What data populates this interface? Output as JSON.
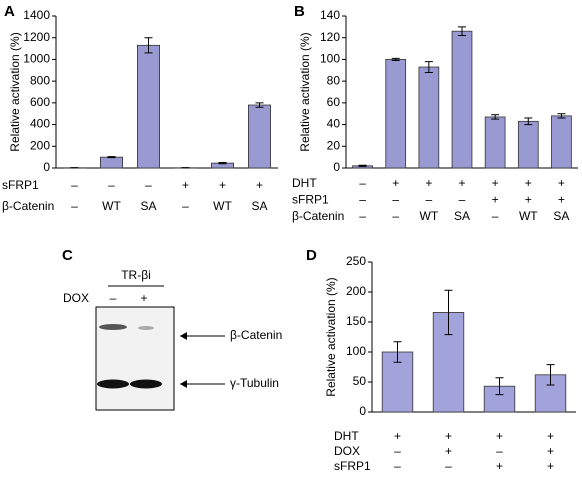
{
  "chart_data": [
    {
      "type": "bar",
      "label": "A",
      "y_label": "Relative activation (%)",
      "color": "#9a9ad2",
      "values": [
        2,
        100,
        1130,
        2,
        45,
        580
      ],
      "errors": [
        1,
        5,
        70,
        1,
        6,
        20
      ],
      "ylim": [
        0,
        1400
      ],
      "yticks": [
        0,
        200,
        400,
        600,
        800,
        1000,
        1200,
        1400
      ],
      "conditions": [
        {
          "name": "sFRP1",
          "values": [
            "–",
            "–",
            "–",
            "+",
            "+",
            "+"
          ]
        },
        {
          "name": "β-Catenin",
          "values": [
            "–",
            "WT",
            "SA",
            "–",
            "WT",
            "SA"
          ]
        }
      ]
    },
    {
      "type": "bar",
      "label": "B",
      "y_label": "Relative activation (%)",
      "color": "#9a9ad2",
      "values": [
        2,
        100,
        93,
        126,
        47,
        43,
        48
      ],
      "errors": [
        0.5,
        1,
        5,
        4,
        2,
        3,
        2
      ],
      "ylim": [
        0,
        140
      ],
      "yticks": [
        0,
        20,
        40,
        60,
        80,
        100,
        120,
        140
      ],
      "conditions": [
        {
          "name": "DHT",
          "values": [
            "–",
            "+",
            "+",
            "+",
            "+",
            "+",
            "+"
          ]
        },
        {
          "name": "sFRP1",
          "values": [
            "–",
            "–",
            "–",
            "–",
            "+",
            "+",
            "+"
          ]
        },
        {
          "name": "β-Catenin",
          "values": [
            "–",
            "–",
            "WT",
            "SA",
            "–",
            "WT",
            "SA"
          ]
        }
      ]
    },
    {
      "type": "bar",
      "label": "D",
      "y_label": "Relative activation (%)",
      "color": "#a3a3dc",
      "values": [
        100,
        166,
        43,
        62
      ],
      "errors": [
        17,
        37,
        14,
        17
      ],
      "ylim": [
        0,
        250
      ],
      "yticks": [
        0,
        50,
        100,
        150,
        200,
        250
      ],
      "conditions": [
        {
          "name": "DHT",
          "values": [
            "+",
            "+",
            "+",
            "+"
          ]
        },
        {
          "name": "DOX",
          "values": [
            "–",
            "+",
            "–",
            "+"
          ]
        },
        {
          "name": "sFRP1",
          "values": [
            "–",
            "–",
            "+",
            "+"
          ]
        }
      ]
    }
  ],
  "blot": {
    "label": "C",
    "group": "TR-βi",
    "condition_name": "DOX",
    "conditions": [
      "–",
      "+"
    ],
    "bands": [
      "β-Catenin",
      "γ-Tubulin"
    ]
  }
}
